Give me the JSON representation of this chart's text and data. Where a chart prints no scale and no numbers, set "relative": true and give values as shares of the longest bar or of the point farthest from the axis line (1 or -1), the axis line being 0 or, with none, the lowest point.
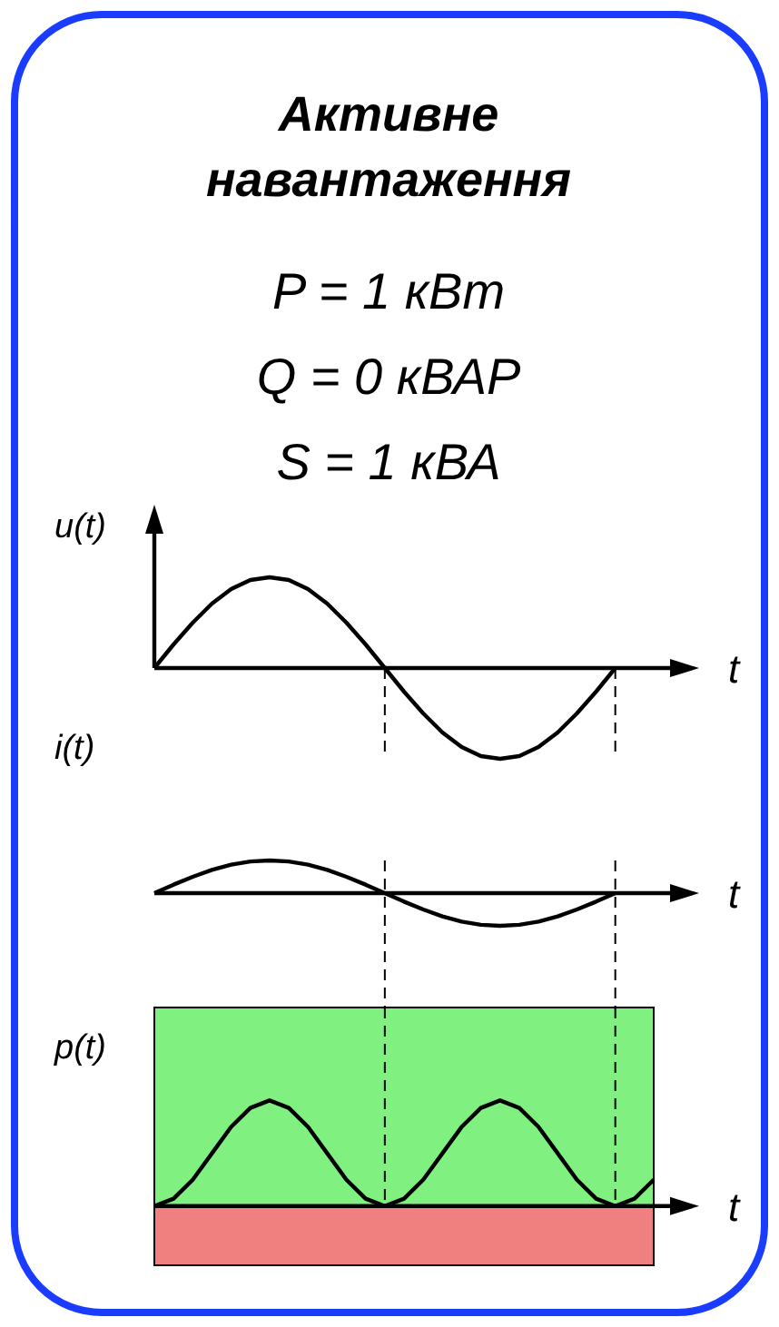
{
  "chart_data": [
    {
      "type": "line",
      "relative": true,
      "title": "Активне навантаження",
      "annotations": [
        "P = 1 кВт",
        "Q = 0 кВАР",
        "S = 1 кВА"
      ],
      "ylabel": "u(t)",
      "xlabel": "t",
      "categories": [
        null,
        null,
        null,
        null,
        null,
        null,
        null,
        null,
        null,
        null,
        null,
        null,
        null,
        null,
        null,
        null,
        null,
        null,
        null,
        null,
        null,
        null,
        null,
        null,
        null,
        null,
        null
      ],
      "series": [
        {
          "color": "#000000",
          "values": [
            0,
            0.26,
            0.5,
            0.71,
            0.87,
            0.97,
            1,
            0.97,
            0.87,
            0.71,
            0.5,
            0.26,
            0,
            -0.26,
            -0.5,
            -0.71,
            -0.87,
            -0.97,
            -1,
            -0.97,
            -0.87,
            -0.71,
            -0.5,
            -0.26,
            0,
            null,
            null
          ]
        }
      ]
    },
    {
      "type": "line",
      "relative": true,
      "ylabel": "i(t)",
      "xlabel": "t",
      "categories": [
        null,
        null,
        null,
        null,
        null,
        null,
        null,
        null,
        null,
        null,
        null,
        null,
        null,
        null,
        null,
        null,
        null,
        null,
        null,
        null,
        null,
        null,
        null,
        null,
        null,
        null,
        null
      ],
      "series": [
        {
          "color": "#000000",
          "values": [
            0,
            0.26,
            0.5,
            0.71,
            0.87,
            0.97,
            1,
            0.97,
            0.87,
            0.71,
            0.5,
            0.26,
            0,
            -0.26,
            -0.5,
            -0.71,
            -0.87,
            -0.97,
            -1,
            -0.97,
            -0.87,
            -0.71,
            -0.5,
            -0.26,
            0,
            null,
            null
          ]
        }
      ]
    },
    {
      "type": "line",
      "relative": true,
      "ylabel": "p(t)",
      "xlabel": "t",
      "categories": [
        null,
        null,
        null,
        null,
        null,
        null,
        null,
        null,
        null,
        null,
        null,
        null,
        null,
        null,
        null,
        null,
        null,
        null,
        null,
        null,
        null,
        null,
        null,
        null,
        null,
        null,
        null
      ],
      "series": [
        {
          "color": "#000000",
          "values": [
            0,
            0.07,
            0.25,
            0.5,
            0.75,
            0.93,
            1,
            0.93,
            0.75,
            0.5,
            0.25,
            0.07,
            0,
            0.07,
            0.25,
            0.5,
            0.75,
            0.93,
            1,
            0.93,
            0.75,
            0.5,
            0.25,
            0.07,
            0,
            0.07,
            0.25
          ]
        }
      ],
      "bands": [
        {
          "axis": "y",
          "from": 0,
          "to": 1.88,
          "color": "#80f080"
        },
        {
          "axis": "y",
          "from": -0.56,
          "to": 0,
          "color": "#f08080"
        }
      ]
    }
  ]
}
